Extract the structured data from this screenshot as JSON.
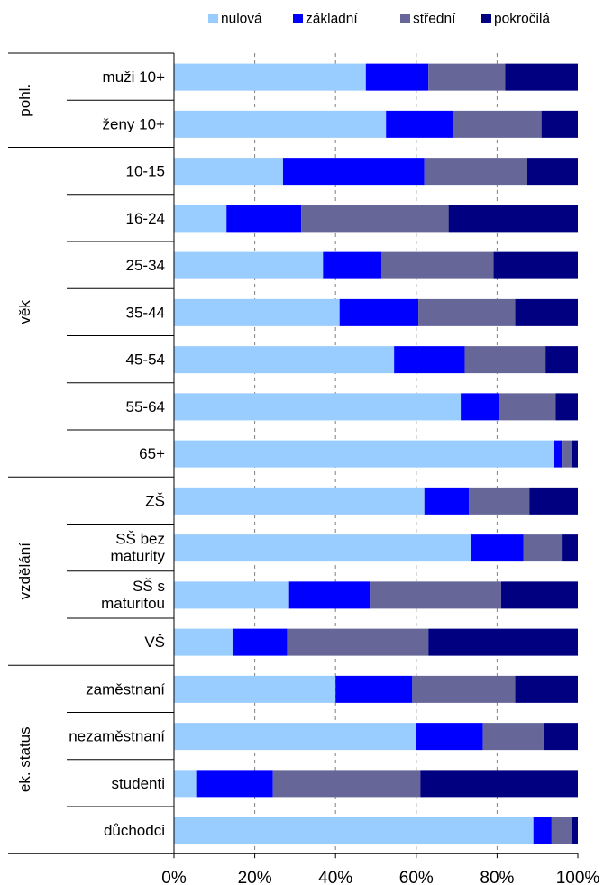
{
  "chart_data": {
    "type": "bar",
    "orientation": "horizontal",
    "stacked": "percent",
    "legend_position": "top-right",
    "x_ticks": [
      "0%",
      "20%",
      "40%",
      "60%",
      "80%",
      "100%"
    ],
    "xlim": [
      0,
      100
    ],
    "grid": "vertical-dashed",
    "series": [
      {
        "name": "nulová",
        "color": "#99CCFF",
        "values": [
          47.5,
          52.5,
          27,
          13,
          34.5,
          41,
          54.5,
          71,
          94,
          62,
          73.5,
          28.5,
          14.5,
          40,
          60,
          5.5,
          89
        ]
      },
      {
        "name": "základní",
        "color": "#0000FF",
        "values": [
          15.5,
          16.5,
          35,
          18.5,
          13.5,
          19.5,
          17.5,
          9.5,
          2,
          11,
          13,
          20,
          13.5,
          19,
          16.5,
          19,
          4.5
        ]
      },
      {
        "name": "střední",
        "color": "#666699",
        "values": [
          19,
          22,
          25.5,
          36.5,
          26,
          24,
          20,
          14,
          2.5,
          15,
          9.5,
          32.5,
          35,
          25.5,
          15,
          36.5,
          5
        ]
      },
      {
        "name": "pokročilá",
        "color": "#000080",
        "values": [
          18,
          9,
          12.5,
          32,
          19.5,
          15.5,
          8,
          5.5,
          1.5,
          12,
          4,
          19,
          37,
          15.5,
          8.5,
          39,
          1.5
        ]
      }
    ],
    "categories": [
      [
        "muži 10+"
      ],
      [
        "ženy 10+"
      ],
      [
        "10-15"
      ],
      [
        "16-24"
      ],
      [
        "25-34"
      ],
      [
        "35-44"
      ],
      [
        "45-54"
      ],
      [
        "55-64"
      ],
      [
        "65+"
      ],
      [
        "ZŠ"
      ],
      [
        "SŠ bez",
        "maturity"
      ],
      [
        "SŠ s",
        "maturitou"
      ],
      [
        "VŠ"
      ],
      [
        "zaměstnaní"
      ],
      [
        "nezaměstnaní"
      ],
      [
        "studenti"
      ],
      [
        "důchodci"
      ]
    ],
    "groups": [
      {
        "label": "pohl.",
        "start": 0,
        "end": 1
      },
      {
        "label": "věk",
        "start": 2,
        "end": 8
      },
      {
        "label": "vzdělání",
        "start": 9,
        "end": 12
      },
      {
        "label": "ek. status",
        "start": 13,
        "end": 16
      }
    ]
  }
}
